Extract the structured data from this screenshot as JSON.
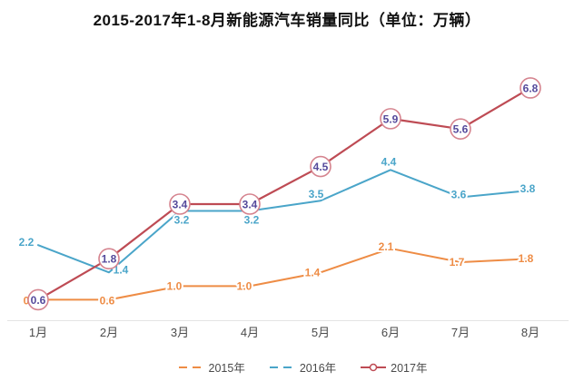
{
  "chart_data": {
    "type": "line",
    "title": "2015-2017年1-8月新能源汽车销量同比（单位：万辆）",
    "categories": [
      "1月",
      "2月",
      "3月",
      "4月",
      "5月",
      "6月",
      "7月",
      "8月"
    ],
    "series": [
      {
        "name": "2015年",
        "color": "#EE8C45",
        "line_style": "solid",
        "legend_marker": "dashed",
        "values": [
          0.6,
          0.6,
          1.0,
          1.0,
          1.4,
          2.1,
          1.7,
          1.8
        ]
      },
      {
        "name": "2016年",
        "color": "#4AA5C9",
        "line_style": "solid",
        "legend_marker": "dashed",
        "values": [
          2.2,
          1.4,
          3.2,
          3.2,
          3.5,
          4.4,
          3.6,
          3.8
        ]
      },
      {
        "name": "2017年",
        "color": "#BE4B54",
        "line_style": "solid",
        "legend_marker": "line-circle",
        "marker": "circle",
        "values": [
          0.6,
          1.8,
          3.4,
          3.4,
          4.5,
          5.9,
          5.6,
          6.8
        ]
      }
    ],
    "xlabel": "",
    "ylabel": "",
    "unit": "万辆",
    "ylim": [
      0,
      7.5
    ],
    "grid": false,
    "y_axis_visible": false,
    "legend_position": "bottom",
    "marker_fill": "#ffffff",
    "marker_border_color": "#D5838E",
    "marker_label_color": "#54499B",
    "axis_line_color": "#E4E4E4",
    "axis_label_color": "#4a4a4a"
  }
}
